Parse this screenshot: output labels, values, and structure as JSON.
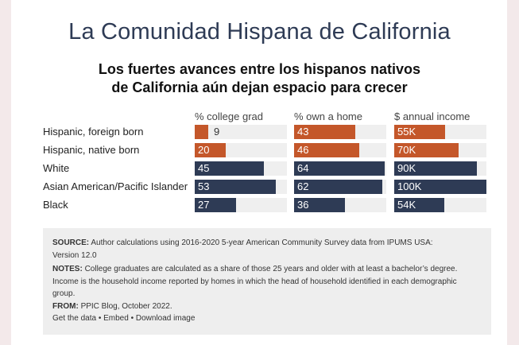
{
  "header": {
    "title": "La Comunidad Hispana de California",
    "subtitle_line1": "Los fuertes avances entre los hispanos nativos",
    "subtitle_line2": "de California aún dejan espacio para crecer"
  },
  "colors": {
    "hispanic": "#c4572a",
    "other": "#2e3b55",
    "track": "#efefef"
  },
  "chart_data": {
    "type": "bar",
    "categories": [
      "Hispanic, foreign born",
      "Hispanic, native born",
      "White",
      "Asian American/Pacific Islander",
      "Black"
    ],
    "series": [
      {
        "name": "% college grad",
        "values": [
          9,
          20,
          45,
          53,
          27
        ],
        "labels": [
          "9",
          "20",
          "45",
          "53",
          "27"
        ],
        "max": 60
      },
      {
        "name": "% own a home",
        "values": [
          43,
          46,
          64,
          62,
          36
        ],
        "labels": [
          "43",
          "46",
          "64",
          "62",
          "36"
        ],
        "max": 65
      },
      {
        "name": "$ annual income",
        "values": [
          55,
          70,
          90,
          100,
          54
        ],
        "labels": [
          "55K",
          "70K",
          "90K",
          "100K",
          "54K"
        ],
        "max": 100
      }
    ]
  },
  "notes": {
    "source_label": "SOURCE:",
    "source_text": "Author calculations using 2016-2020 5-year American Community Survey data from IPUMS USA:",
    "source_text2": "Version 12.0",
    "notes_label": "NOTES:",
    "notes_text": "College graduates are calculated as a share of those 25 years and older with at least a bachelor’s degree.",
    "notes_text2": "Income is the household income reported by homes in which the head of household identified in each demographic",
    "notes_text3": "group.",
    "from_label": "FROM:",
    "from_text": "PPIC Blog, October 2022."
  },
  "links": {
    "get_data": "Get the data",
    "embed": "Embed",
    "download": "Download image",
    "separator": "•"
  }
}
